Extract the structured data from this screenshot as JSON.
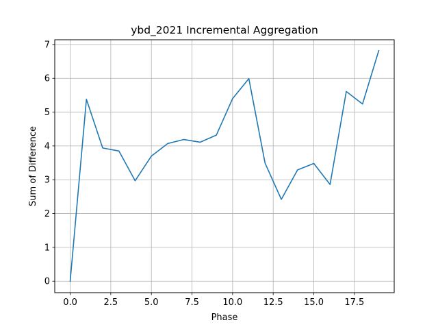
{
  "chart_data": {
    "type": "line",
    "title": "ybd_2021 Incremental Aggregation",
    "xlabel": "Phase",
    "ylabel": "Sum of Difference",
    "xlim": [
      -0.95,
      19.95
    ],
    "ylim": [
      -0.34,
      7.14
    ],
    "xticks": [
      0,
      2.5,
      5,
      7.5,
      10,
      12.5,
      15,
      17.5
    ],
    "xtick_labels": [
      "0.0",
      "2.5",
      "5.0",
      "7.5",
      "10.0",
      "12.5",
      "15.0",
      "17.5"
    ],
    "yticks": [
      0,
      1,
      2,
      3,
      4,
      5,
      6,
      7
    ],
    "ytick_labels": [
      "0",
      "1",
      "2",
      "3",
      "4",
      "5",
      "6",
      "7"
    ],
    "grid": true,
    "color": "#1f77b4",
    "series": [
      {
        "x": [
          0,
          1,
          2,
          3,
          4,
          5,
          6,
          7,
          8,
          9,
          10,
          11,
          12,
          13,
          14,
          15,
          16,
          17,
          18,
          19
        ],
        "values": [
          0.0,
          5.38,
          3.94,
          3.85,
          2.97,
          3.7,
          4.07,
          4.19,
          4.11,
          4.32,
          5.4,
          5.99,
          3.49,
          2.42,
          3.29,
          3.48,
          2.86,
          5.61,
          5.24,
          6.82
        ]
      }
    ]
  }
}
